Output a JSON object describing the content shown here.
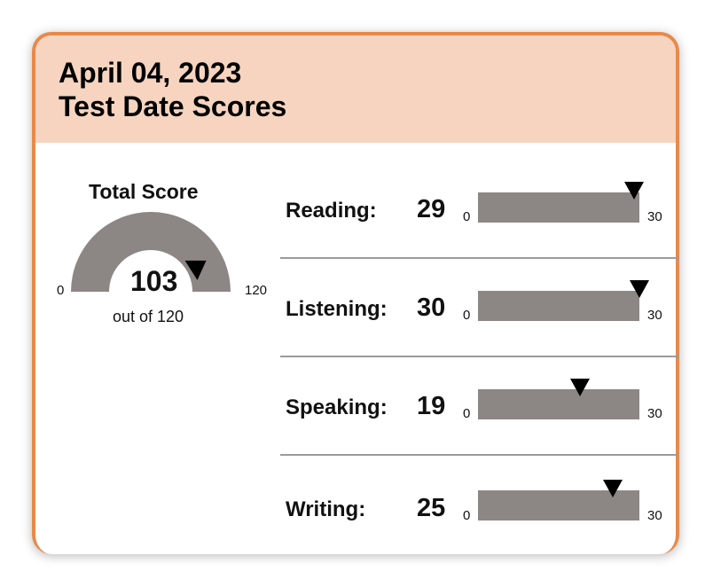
{
  "header": {
    "date": "April 04, 2023",
    "title": "Test Date Scores"
  },
  "total": {
    "title": "Total Score",
    "score": "103",
    "min": "0",
    "max": "120",
    "out_of": "out of 120"
  },
  "sections": [
    {
      "label": "Reading:",
      "score": "29",
      "min": "0",
      "max": "30"
    },
    {
      "label": "Listening:",
      "score": "30",
      "min": "0",
      "max": "30"
    },
    {
      "label": "Speaking:",
      "score": "19",
      "min": "0",
      "max": "30"
    },
    {
      "label": "Writing:",
      "score": "25",
      "min": "0",
      "max": "30"
    }
  ],
  "colors": {
    "accent": "#e8894a",
    "header_bg": "#f6d4bf",
    "bar": "#8c8784",
    "marker": "#000000"
  }
}
